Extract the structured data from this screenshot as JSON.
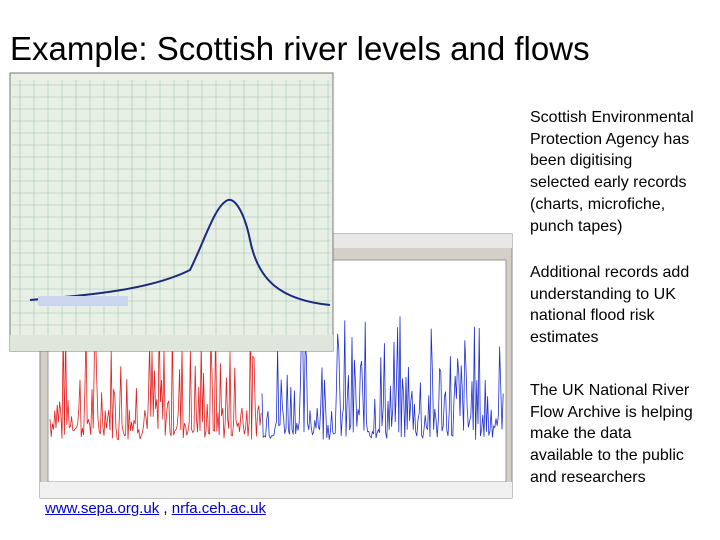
{
  "title": "Example: Scottish river levels and flows",
  "paragraphs": [
    "Scottish Environmental Protection Agency has been digitising selected early records (charts, microfiche, punch tapes)",
    "Additional records add understanding to UK national flood risk estimates",
    "The UK National River Flow Archive is helping make the data available to the public and researchers"
  ],
  "links": [
    "www.sepa.org.uk",
    "nrfa.ceh.ac.uk"
  ],
  "separator": ","
}
